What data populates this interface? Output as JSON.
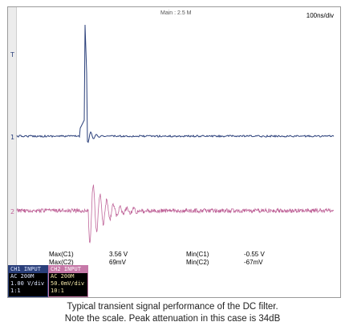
{
  "scope": {
    "main_label": "Main : 2.5 M",
    "timebase": "100ns/div",
    "trigger_marker": "T",
    "ch1_marker": "1",
    "ch2_marker": "2",
    "trace_colors": {
      "ch1": "#2a3f7a",
      "ch2": "#c0669a"
    }
  },
  "measurements": {
    "max_c1_label": "Max(C1)",
    "max_c1_value": "3.56 V",
    "max_c2_label": "Max(C2)",
    "max_c2_value": "69mV",
    "min_c1_label": "Min(C1)",
    "min_c1_value": "-0.55 V",
    "min_c2_label": "Min(C2)",
    "min_c2_value": "-67mV"
  },
  "channels": {
    "ch1": {
      "title": "CH1  INPUT",
      "coupling": "AC 200M",
      "scale": "1.00 V/div",
      "probe": "1:1"
    },
    "ch2": {
      "title": "CH2  INPUT",
      "coupling": "AC 200M",
      "scale": "50.0mV/div",
      "probe": "10:1"
    }
  },
  "caption": {
    "line1": "Typical transient signal performance of the DC filter.",
    "line2": "Note the scale.  Peak attenuation in this case is 34dB"
  }
}
